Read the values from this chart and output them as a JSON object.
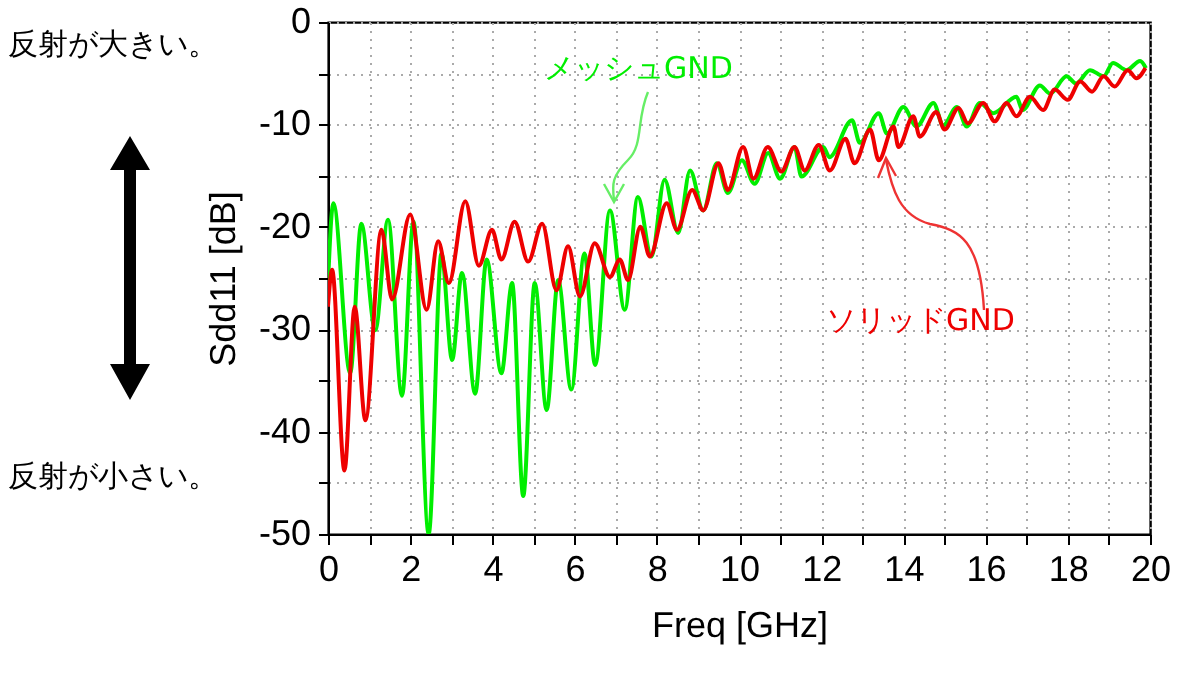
{
  "chart_data": {
    "type": "line",
    "xlabel": "Freq [GHz]",
    "ylabel": "Sdd11 [dB]",
    "annotations": [
      "反射が大きい。",
      "反射が小さい。"
    ],
    "xlim": [
      0,
      20
    ],
    "ylim": [
      -50,
      0
    ],
    "xticks": [
      0,
      {
        "value": 1,
        "label": null
      },
      2,
      {
        "value": 3,
        "label": null
      },
      4,
      {
        "value": 5,
        "label": null
      },
      6,
      {
        "value": 7,
        "label": null
      },
      8,
      {
        "value": 9,
        "label": null
      },
      10,
      {
        "value": 11,
        "label": null
      },
      12,
      {
        "value": 13,
        "label": null
      },
      14,
      {
        "value": 15,
        "label": null
      },
      16,
      {
        "value": 17,
        "label": null
      },
      18,
      {
        "value": 19,
        "label": null
      },
      20
    ],
    "yticks": [
      -50,
      {
        "value": -45,
        "label": null
      },
      -40,
      {
        "value": -35,
        "label": null
      },
      -30,
      {
        "value": -25,
        "label": null
      },
      -20,
      {
        "value": -15,
        "label": null
      },
      -10,
      {
        "value": -5,
        "label": null
      },
      0
    ],
    "grid": true,
    "series": [
      {
        "name": "メッシュGND",
        "color": "#00ee00",
        "x": [
          0,
          0.13,
          0.54,
          0.81,
          1.15,
          1.46,
          1.8,
          2.08,
          2.45,
          2.76,
          3.02,
          3.26,
          3.58,
          3.86,
          4.22,
          4.48,
          4.75,
          5.03,
          5.32,
          5.6,
          5.92,
          6.24,
          6.5,
          6.86,
          7.22,
          7.54,
          7.87,
          8.19,
          8.52,
          8.81,
          9.13,
          9.46,
          9.73,
          10.07,
          10.38,
          10.71,
          11.0,
          11.35,
          11.52,
          12.05,
          12.2,
          12.75,
          12.94,
          13.4,
          13.6,
          14.0,
          14.32,
          14.73,
          14.97,
          15.3,
          15.54,
          15.86,
          16.19,
          16.75,
          16.9,
          17.32,
          17.57,
          17.97,
          18.2,
          18.54,
          18.87,
          19.1,
          19.43,
          19.76,
          19.9
        ],
        "values": [
          -25.5,
          -17.7,
          -34.3,
          -19.7,
          -30.1,
          -19.3,
          -36.5,
          -19.5,
          -50,
          -22.6,
          -33,
          -24.5,
          -36.3,
          -23.2,
          -34.3,
          -25.5,
          -46.3,
          -25.5,
          -37.9,
          -25.2,
          -35.9,
          -22.6,
          -33.5,
          -18.4,
          -28.1,
          -17.1,
          -22.9,
          -15.4,
          -20.6,
          -14.5,
          -18.4,
          -13.8,
          -16.7,
          -13.5,
          -15.8,
          -12.8,
          -15.3,
          -12.2,
          -15.1,
          -12.2,
          -13.2,
          -9.6,
          -11.8,
          -8.9,
          -10.9,
          -8.3,
          -10.2,
          -7.9,
          -10.1,
          -8.3,
          -10.2,
          -7.9,
          -8.9,
          -7.3,
          -8.6,
          -6.2,
          -7.0,
          -5.3,
          -6.0,
          -4.7,
          -5.3,
          -4.0,
          -4.7,
          -3.8,
          -4.5
        ]
      },
      {
        "name": "ソリッドGND",
        "color": "#ee0000",
        "x": [
          0,
          0.1,
          0.4,
          0.65,
          0.91,
          1.3,
          1.56,
          2.0,
          2.4,
          2.68,
          2.94,
          3.34,
          3.67,
          3.99,
          4.22,
          4.54,
          4.87,
          5.21,
          5.56,
          5.84,
          6.13,
          6.49,
          6.86,
          7.1,
          7.3,
          7.6,
          7.83,
          8.24,
          8.49,
          8.86,
          9.13,
          9.5,
          9.73,
          10.1,
          10.35,
          10.7,
          11.03,
          11.35,
          11.6,
          11.94,
          12.21,
          12.59,
          12.81,
          13.19,
          13.4,
          13.76,
          13.88,
          14.24,
          14.4,
          14.8,
          15.0,
          15.34,
          15.57,
          15.94,
          16.22,
          16.51,
          16.75,
          17.08,
          17.4,
          17.68,
          18.0,
          18.3,
          18.59,
          18.87,
          19.14,
          19.46,
          19.67,
          19.89
        ],
        "values": [
          -27.8,
          -24.2,
          -43.8,
          -27.8,
          -38.9,
          -20.3,
          -27.1,
          -18.8,
          -28.1,
          -21.4,
          -25.5,
          -17.5,
          -23.8,
          -20.3,
          -23.2,
          -19.5,
          -23.4,
          -19.7,
          -26.2,
          -21.9,
          -26.8,
          -21.6,
          -24.9,
          -23.2,
          -25.2,
          -20,
          -22.9,
          -17.7,
          -20.3,
          -16.4,
          -18.4,
          -13.8,
          -16.4,
          -12.2,
          -15.3,
          -12.2,
          -14.6,
          -12.2,
          -14.5,
          -12.0,
          -14.5,
          -11.4,
          -13.8,
          -10.5,
          -13.5,
          -10.2,
          -12.2,
          -9.2,
          -11.2,
          -8.8,
          -10.5,
          -8.4,
          -9.9,
          -7.9,
          -9.7,
          -7.9,
          -9.2,
          -7.3,
          -8.6,
          -6.6,
          -7.6,
          -5.8,
          -6.8,
          -5.3,
          -6.3,
          -4.7,
          -5.5,
          -4.5
        ]
      }
    ]
  }
}
